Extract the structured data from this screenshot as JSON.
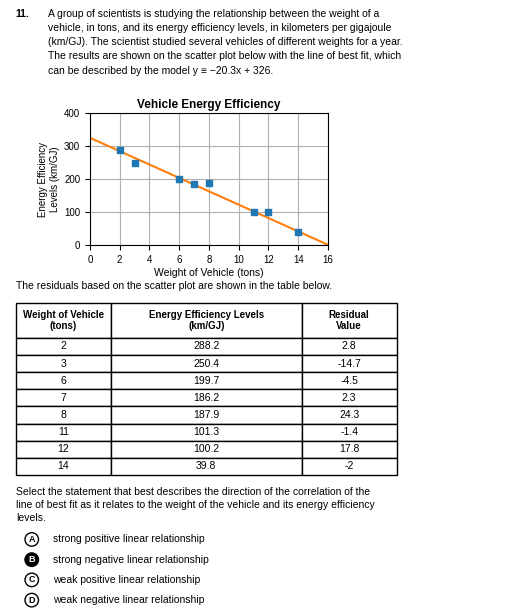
{
  "chart_data": {
    "type": "scatter",
    "question_number": "11.",
    "question_lines": [
      "A group of scientists is studying the relationship between the weight of a",
      "vehicle, in tons, and its energy efficiency levels, in kilometers per gigajoule",
      "(km/GJ). The scientist studied several vehicles of different weights for a year.",
      "The results are shown on the scatter plot below with the line of best fit, which",
      "can be described by the model y ≡ −20.3x + 326."
    ],
    "title": "Vehicle Energy Efficiency",
    "xlabel": "Weight of Vehicle (tons)",
    "ylabel": "Energy Efficiency\nLevels (km/GJ)",
    "xlim": [
      0,
      16
    ],
    "ylim": [
      0,
      400
    ],
    "xticks": [
      0,
      2,
      4,
      6,
      8,
      10,
      12,
      14,
      16
    ],
    "yticks": [
      0,
      100,
      200,
      300,
      400
    ],
    "grid": true,
    "series": [
      {
        "type": "scatter",
        "marker": "square",
        "x": [
          2,
          3,
          6,
          7,
          8,
          11,
          12,
          14
        ],
        "values": [
          288.2,
          250.4,
          199.7,
          186.2,
          187.9,
          101.3,
          100.2,
          39.8
        ]
      },
      {
        "type": "line",
        "line_style": "solid",
        "x": [
          0,
          16
        ],
        "values": [
          326,
          1.2
        ]
      }
    ],
    "residual_text": "The residuals based on the scatter plot are shown in the table below.",
    "table": {
      "headers": [
        "Weight of Vehicle\n(tons)",
        "Energy Efficiency Levels\n(km/GJ)",
        "Residual\nValue"
      ],
      "rows": [
        [
          "2",
          "288.2",
          "2.8"
        ],
        [
          "3",
          "250.4",
          "-14.7"
        ],
        [
          "6",
          "199.7",
          "-4.5"
        ],
        [
          "7",
          "186.2",
          "2.3"
        ],
        [
          "8",
          "187.9",
          "24.3"
        ],
        [
          "11",
          "101.3",
          "-1.4"
        ],
        [
          "12",
          "100.2",
          "17.8"
        ],
        [
          "14",
          "39.8",
          "-2"
        ]
      ]
    },
    "select_text": "Select the statement that best describes the direction of the correlation of the\nline of best fit as it relates to the weight of the vehicle and its energy efficiency\nlevels.",
    "options": [
      {
        "label": "A",
        "text": "strong positive linear relationship",
        "selected": false
      },
      {
        "label": "B",
        "text": "strong negative linear relationship",
        "selected": true
      },
      {
        "label": "C",
        "text": "weak positive linear relationship",
        "selected": false
      },
      {
        "label": "D",
        "text": "weak negative linear relationship",
        "selected": false
      }
    ]
  }
}
